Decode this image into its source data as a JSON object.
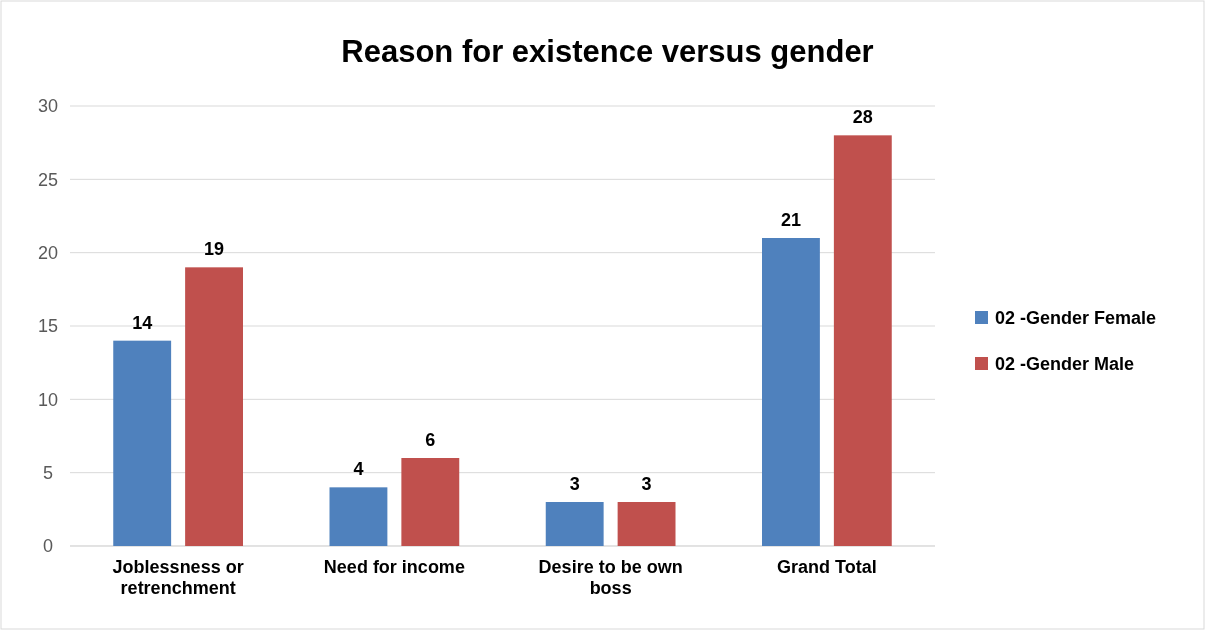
{
  "chart_data": {
    "type": "bar",
    "title": "Reason for existence versus gender",
    "categories": [
      "Joblessness or retrenchment",
      "Need for income",
      "Desire to be own boss",
      "Grand Total"
    ],
    "series": [
      {
        "name": "02 -Gender Female",
        "color": "#4f81bd",
        "values": [
          14,
          4,
          3,
          21
        ]
      },
      {
        "name": "02 -Gender Male",
        "color": "#c0504d",
        "values": [
          19,
          6,
          3,
          28
        ]
      }
    ],
    "ylim": [
      0,
      30
    ],
    "yticks": [
      0,
      5,
      10,
      15,
      20,
      25,
      30
    ],
    "grid": "y",
    "legend": "right",
    "data_labels": true
  }
}
